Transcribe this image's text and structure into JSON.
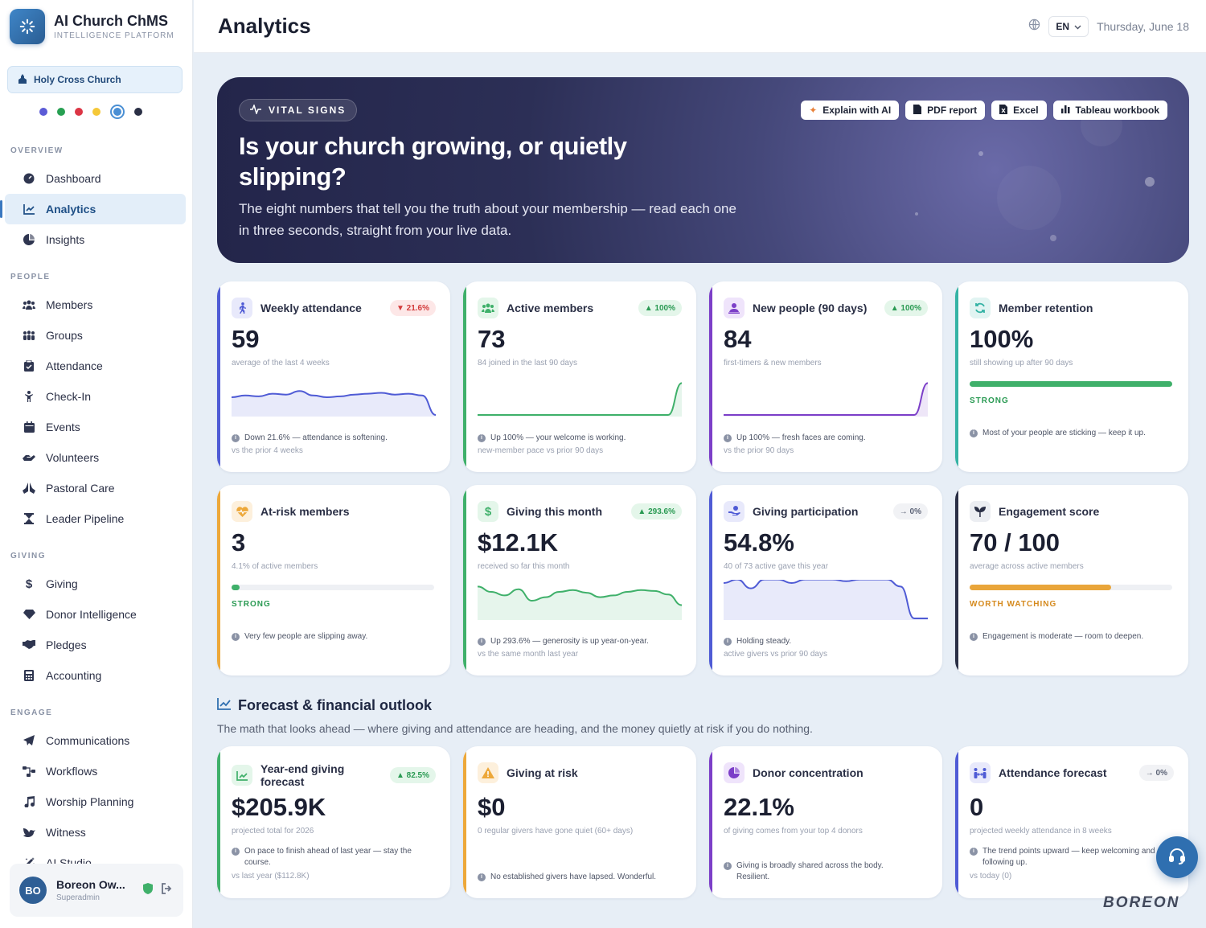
{
  "app": {
    "name": "AI Church ChMS",
    "subtitle": "INTELLIGENCE PLATFORM"
  },
  "church": "Holy Cross Church",
  "theme_colors": [
    "#5b5bd6",
    "#27a052",
    "#dc3545",
    "#f5c838",
    "#4a8fd4",
    "#2a2f45"
  ],
  "sidebar": {
    "sections": [
      {
        "label": "OVERVIEW",
        "items": [
          {
            "label": "Dashboard",
            "icon": "dashboard-icon"
          },
          {
            "label": "Analytics",
            "icon": "chart-line-icon",
            "active": true
          },
          {
            "label": "Insights",
            "icon": "pie-chart-icon"
          }
        ]
      },
      {
        "label": "PEOPLE",
        "items": [
          {
            "label": "Members",
            "icon": "members-icon"
          },
          {
            "label": "Groups",
            "icon": "groups-icon"
          },
          {
            "label": "Attendance",
            "icon": "clipboard-icon"
          },
          {
            "label": "Check-In",
            "icon": "child-icon"
          },
          {
            "label": "Events",
            "icon": "calendar-icon"
          },
          {
            "label": "Volunteers",
            "icon": "hands-icon"
          },
          {
            "label": "Pastoral Care",
            "icon": "praying-hands-icon"
          },
          {
            "label": "Leader Pipeline",
            "icon": "hourglass-icon"
          }
        ]
      },
      {
        "label": "GIVING",
        "items": [
          {
            "label": "Giving",
            "icon": "dollar-icon"
          },
          {
            "label": "Donor Intelligence",
            "icon": "gem-icon"
          },
          {
            "label": "Pledges",
            "icon": "handshake-icon"
          },
          {
            "label": "Accounting",
            "icon": "calculator-icon"
          }
        ]
      },
      {
        "label": "ENGAGE",
        "items": [
          {
            "label": "Communications",
            "icon": "paper-plane-icon"
          },
          {
            "label": "Workflows",
            "icon": "workflow-icon"
          },
          {
            "label": "Worship Planning",
            "icon": "music-icon"
          },
          {
            "label": "Witness",
            "icon": "dove-icon"
          },
          {
            "label": "AI Studio",
            "icon": "magic-wand-icon"
          }
        ]
      }
    ]
  },
  "user": {
    "initials": "BO",
    "name": "Boreon Ow...",
    "role": "Superadmin"
  },
  "topbar": {
    "title": "Analytics",
    "lang": "EN",
    "date": "Thursday, June 18"
  },
  "hero": {
    "tag": "VITAL SIGNS",
    "title": "Is your church growing, or quietly slipping?",
    "description": "The eight numbers that tell you the truth about your membership — read each one in three seconds, straight from your live data.",
    "buttons": [
      "Explain with AI",
      "PDF report",
      "Excel",
      "Tableau workbook"
    ]
  },
  "cards": [
    {
      "title": "Weekly attendance",
      "badge": "▼ 21.6%",
      "badge_type": "red",
      "value": "59",
      "sub": "average of the last 4 weeks",
      "note": "Down 21.6% — attendance is softening.",
      "note2": "vs the prior 4 weeks",
      "color": "#4f5bd5",
      "icon_bg": "#e8e9fb",
      "icon": "person-walking-icon",
      "spark": [
        20,
        22,
        21,
        24,
        23,
        27,
        22,
        20,
        21,
        23,
        24,
        25,
        23,
        24,
        22,
        0
      ]
    },
    {
      "title": "Active members",
      "badge": "▲ 100%",
      "badge_type": "green",
      "value": "73",
      "sub": "84 joined in the last 90 days",
      "note": "Up 100% — your welcome is working.",
      "note2": "new-member pace vs prior 90 days",
      "color": "#3fb06a",
      "icon_bg": "#e4f6ea",
      "icon": "members-icon",
      "spark": [
        0,
        0,
        0,
        0,
        0,
        0,
        0,
        0,
        0,
        0,
        0,
        0,
        0,
        0,
        0,
        36
      ]
    },
    {
      "title": "New people (90 days)",
      "badge": "▲ 100%",
      "badge_type": "green",
      "value": "84",
      "sub": "first-timers & new members",
      "note": "Up 100% — fresh faces are coming.",
      "note2": "vs the prior 90 days",
      "color": "#7c3fc8",
      "icon_bg": "#efe4fb",
      "icon": "new-person-icon",
      "spark": [
        0,
        0,
        0,
        0,
        0,
        0,
        0,
        0,
        0,
        0,
        0,
        0,
        0,
        0,
        0,
        36
      ]
    },
    {
      "title": "Member retention",
      "value": "100%",
      "sub": "still showing up after 90 days",
      "progress": 1.0,
      "progress_label": "STRONG",
      "progress_color": "#3fb06a",
      "note": "Most of your people are sticking — keep it up.",
      "color": "#35b3a5",
      "icon_bg": "#e1f4f2",
      "icon": "refresh-icon"
    },
    {
      "title": "At-risk members",
      "value": "3",
      "sub": "4.1% of active members",
      "progress": 0.041,
      "progress_label": "STRONG",
      "progress_color": "#3fb06a",
      "note": "Very few people are slipping away.",
      "color": "#eda83a",
      "icon_bg": "#fdf0dc",
      "icon": "heart-pulse-icon"
    },
    {
      "title": "Giving this month",
      "badge": "▲ 293.6%",
      "badge_type": "green",
      "value": "$12.1K",
      "sub": "received so far this month",
      "note": "Up 293.6% — generosity is up year-on-year.",
      "note2": "vs the same month last year",
      "color": "#3fb06a",
      "icon_bg": "#e4f6ea",
      "icon": "dollar-icon",
      "spark": [
        36,
        30,
        26,
        33,
        20,
        24,
        30,
        32,
        29,
        24,
        26,
        30,
        32,
        31,
        27,
        15
      ]
    },
    {
      "title": "Giving participation",
      "badge": "→ 0%",
      "badge_type": "gray",
      "value": "54.8%",
      "sub": "40 of 73 active gave this year",
      "note": "Holding steady.",
      "note2": "active givers vs prior 90 days",
      "color": "#4f5bd5",
      "icon_bg": "#e8e9fb",
      "icon": "hand-coin-icon",
      "spark": [
        40,
        44,
        34,
        44,
        44,
        40,
        44,
        44,
        44,
        42,
        44,
        44,
        44,
        36,
        0,
        0
      ]
    },
    {
      "title": "Engagement score",
      "value": "70 / 100",
      "sub": "average across active members",
      "progress": 0.7,
      "progress_label": "WORTH WATCHING",
      "progress_color": "#e9a53a",
      "note": "Engagement is moderate — room to deepen.",
      "color": "#2a2f45",
      "icon_bg": "#eceef2",
      "icon": "sprout-icon"
    }
  ],
  "forecast": {
    "title": "Forecast & financial outlook",
    "subtitle": "The math that looks ahead — where giving and attendance are heading, and the money quietly at risk if you do nothing.",
    "cards": [
      {
        "title": "Year-end giving forecast",
        "badge": "▲ 82.5%",
        "badge_type": "green",
        "value": "$205.9K",
        "sub": "projected total for 2026",
        "note": "On pace to finish ahead of last year — stay the course.",
        "note2": "vs last year ($112.8K)",
        "color": "#3fb06a",
        "icon_bg": "#e4f6ea",
        "icon": "trend-up-icon"
      },
      {
        "title": "Giving at risk",
        "value": "$0",
        "sub": "0 regular givers have gone quiet (60+ days)",
        "note": "No established givers have lapsed. Wonderful.",
        "color": "#eda83a",
        "icon_bg": "#fdf0dc",
        "icon": "warning-icon"
      },
      {
        "title": "Donor concentration",
        "value": "22.1%",
        "sub": "of giving comes from your top 4 donors",
        "note": "Giving is broadly shared across the body. Resilient.",
        "color": "#7c3fc8",
        "icon_bg": "#efe4fb",
        "icon": "pie-chart-icon"
      },
      {
        "title": "Attendance forecast",
        "badge": "→ 0%",
        "badge_type": "gray",
        "value": "0",
        "sub": "projected weekly attendance in 8 weeks",
        "note": "The trend points upward — keep welcoming and following up.",
        "note2": "vs today (0)",
        "color": "#4f5bd5",
        "icon_bg": "#e8e9fb",
        "icon": "people-arrows-icon"
      }
    ]
  },
  "watermark": "BOREON"
}
